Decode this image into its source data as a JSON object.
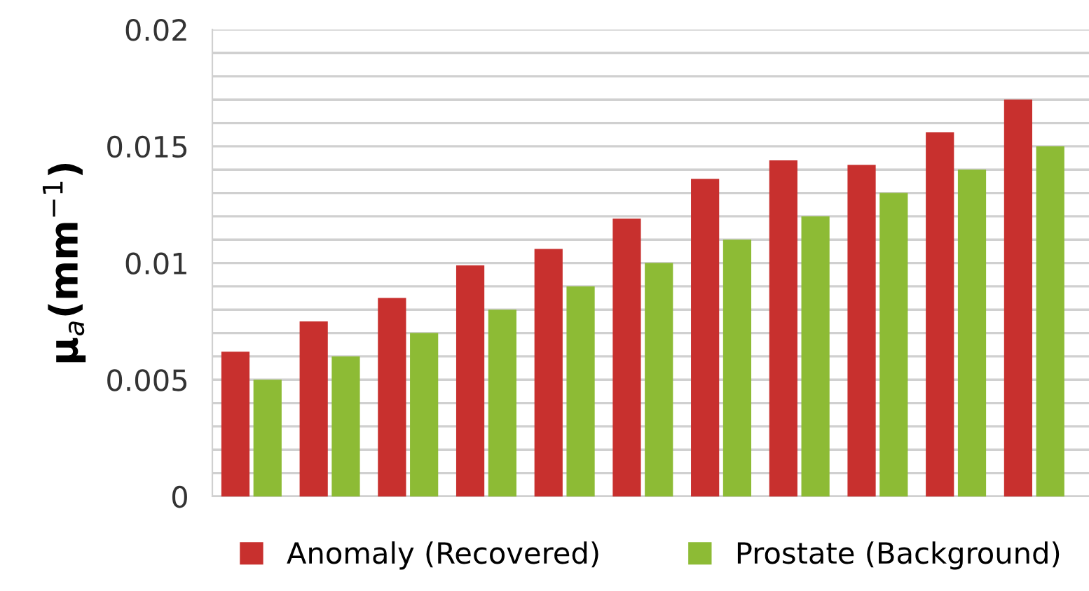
{
  "chart_data": {
    "type": "bar",
    "ylabel": "μ$_{a}$(mm$^{−1}$)",
    "categories": [
      null,
      null,
      null,
      null,
      null,
      null,
      null,
      null,
      null,
      null,
      null
    ],
    "series": [
      {
        "name": "Anomaly (Recovered)",
        "color": "#c8302e",
        "values": [
          0.0062,
          0.0075,
          0.0085,
          0.0099,
          0.0106,
          0.0119,
          0.0136,
          0.0144,
          0.0142,
          0.0156,
          0.017
        ]
      },
      {
        "name": "Prostate (Background)",
        "color": "#8dbb35",
        "values": [
          0.005,
          0.006,
          0.007,
          0.008,
          0.009,
          0.01,
          0.011,
          0.012,
          0.013,
          0.014,
          0.015
        ]
      }
    ],
    "ylim": [
      0,
      0.02
    ],
    "yticks": [
      0,
      {
        "value": 0.001,
        "label": null
      },
      {
        "value": 0.002,
        "label": null
      },
      {
        "value": 0.003,
        "label": null
      },
      {
        "value": 0.004,
        "label": null
      },
      0.005,
      {
        "value": 0.006,
        "label": null
      },
      {
        "value": 0.007,
        "label": null
      },
      {
        "value": 0.008,
        "label": null
      },
      {
        "value": 0.009,
        "label": null
      },
      0.01,
      {
        "value": 0.011,
        "label": null
      },
      {
        "value": 0.012,
        "label": null
      },
      {
        "value": 0.013,
        "label": null
      },
      {
        "value": 0.014,
        "label": null
      },
      0.015,
      {
        "value": 0.016,
        "label": null
      },
      {
        "value": 0.017,
        "label": null
      },
      {
        "value": 0.018,
        "label": null
      },
      {
        "value": 0.019,
        "label": null
      },
      0.02
    ],
    "grid": "y",
    "legend": "bottom"
  }
}
